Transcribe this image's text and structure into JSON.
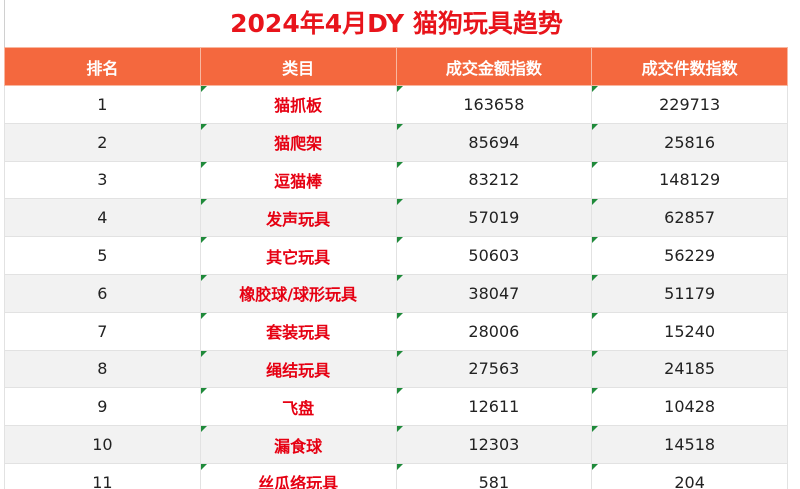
{
  "title": "2024年4月DY 猫狗玩具趋势",
  "table": {
    "header": [
      "排名",
      "类目",
      "成交金额指数",
      "成交件数指数"
    ],
    "rows": [
      [
        1,
        "猫抓板",
        163658,
        229713
      ],
      [
        2,
        "猫爬架",
        85694,
        25816
      ],
      [
        3,
        "逗猫棒",
        83212,
        148129
      ],
      [
        4,
        "发声玩具",
        57019,
        62857
      ],
      [
        5,
        "其它玩具",
        50603,
        56229
      ],
      [
        6,
        "橡胶球/球形玩具",
        38047,
        51179
      ],
      [
        7,
        "套装玩具",
        28006,
        15240
      ],
      [
        8,
        "绳结玩具",
        27563,
        24185
      ],
      [
        9,
        "飞盘",
        12611,
        10428
      ],
      [
        10,
        "漏食球",
        12303,
        14518
      ],
      [
        11,
        "丝瓜络玩具",
        581,
        204
      ]
    ]
  }
}
